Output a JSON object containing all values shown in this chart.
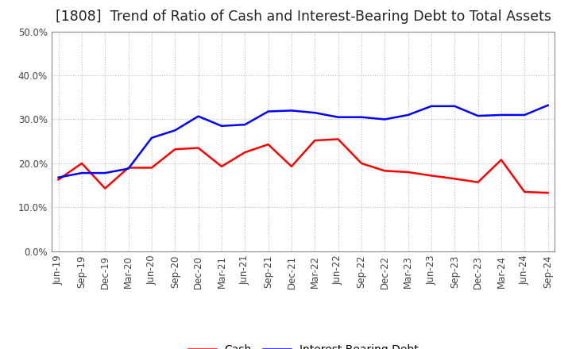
{
  "title": "[1808]  Trend of Ratio of Cash and Interest-Bearing Debt to Total Assets",
  "x_labels": [
    "Jun-19",
    "Sep-19",
    "Dec-19",
    "Mar-20",
    "Jun-20",
    "Sep-20",
    "Dec-20",
    "Mar-21",
    "Jun-21",
    "Sep-21",
    "Dec-21",
    "Mar-22",
    "Jun-22",
    "Sep-22",
    "Dec-22",
    "Mar-23",
    "Jun-23",
    "Sep-23",
    "Dec-23",
    "Mar-24",
    "Jun-24",
    "Sep-24"
  ],
  "cash": [
    0.163,
    0.2,
    0.143,
    0.19,
    0.19,
    0.232,
    0.235,
    0.193,
    0.225,
    0.243,
    0.193,
    0.252,
    0.255,
    0.2,
    0.183,
    0.18,
    0.172,
    0.165,
    0.157,
    0.208,
    0.135,
    0.133
  ],
  "ibd": [
    0.168,
    0.178,
    0.178,
    0.188,
    0.258,
    0.275,
    0.307,
    0.285,
    0.288,
    0.318,
    0.32,
    0.315,
    0.305,
    0.305,
    0.3,
    0.31,
    0.33,
    0.33,
    0.308,
    0.31,
    0.31,
    0.332
  ],
  "cash_color": "#ff0000",
  "ibd_color": "#0000ff",
  "background_color": "#ffffff",
  "grid_color": "#bbbbbb",
  "ylim": [
    0.0,
    0.5
  ],
  "yticks": [
    0.0,
    0.1,
    0.2,
    0.3,
    0.4,
    0.5
  ],
  "legend_cash": "Cash",
  "legend_ibd": "Interest-Bearing Debt",
  "title_fontsize": 12.5,
  "axis_fontsize": 8.5,
  "legend_fontsize": 10
}
